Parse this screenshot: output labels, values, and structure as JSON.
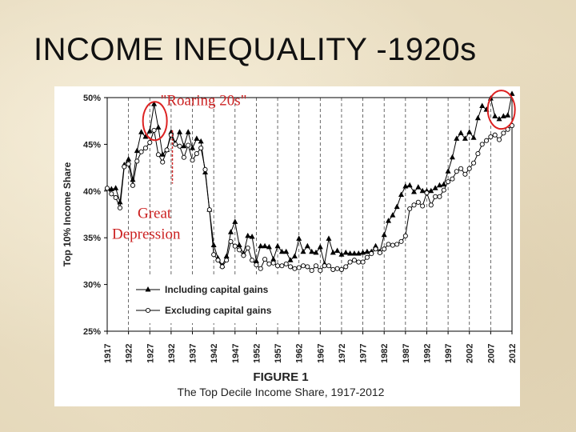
{
  "slide": {
    "title": "INCOME INEQUALITY -1920s"
  },
  "chart_data": {
    "type": "line",
    "ylabel": "Top 10% Income Share",
    "xlim": [
      1917,
      2012
    ],
    "ylim": [
      25,
      50
    ],
    "yticks": [
      25,
      30,
      35,
      40,
      45,
      50
    ],
    "ytick_labels": [
      "25%",
      "30%",
      "35%",
      "40%",
      "45%",
      "50%"
    ],
    "xticks": [
      1917,
      1922,
      1927,
      1932,
      1937,
      1942,
      1947,
      1952,
      1957,
      1962,
      1967,
      1972,
      1977,
      1982,
      1987,
      1992,
      1997,
      2002,
      2007,
      2012
    ],
    "xtick_labels": [
      "1917",
      "1922",
      "1927",
      "1932",
      "1937",
      "1942",
      "1947",
      "1952",
      "1957",
      "1962",
      "1967",
      "1972",
      "1977",
      "1982",
      "1987",
      "1992",
      "1997",
      "2002",
      "2007",
      "2012"
    ],
    "grid": "vertical-dashed",
    "legend_position": "bottom-left",
    "figure_label": "FIGURE 1",
    "figure_caption": "The Top Decile Income Share, 1917-2012",
    "series": [
      {
        "name": "Including capital gains",
        "marker": "filled-triangle",
        "x": [
          1917,
          1918,
          1919,
          1920,
          1921,
          1922,
          1923,
          1924,
          1925,
          1926,
          1927,
          1928,
          1929,
          1930,
          1931,
          1932,
          1933,
          1934,
          1935,
          1936,
          1937,
          1938,
          1939,
          1940,
          1941,
          1942,
          1943,
          1944,
          1945,
          1946,
          1947,
          1948,
          1949,
          1950,
          1951,
          1952,
          1953,
          1954,
          1955,
          1956,
          1957,
          1958,
          1959,
          1960,
          1961,
          1962,
          1963,
          1964,
          1965,
          1966,
          1967,
          1968,
          1969,
          1970,
          1971,
          1972,
          1973,
          1974,
          1975,
          1976,
          1977,
          1978,
          1979,
          1980,
          1981,
          1982,
          1983,
          1984,
          1985,
          1986,
          1987,
          1988,
          1989,
          1990,
          1991,
          1992,
          1993,
          1994,
          1995,
          1996,
          1997,
          1998,
          1999,
          2000,
          2001,
          2002,
          2003,
          2004,
          2005,
          2006,
          2007,
          2008,
          2009,
          2010,
          2011,
          2012
        ],
        "values": [
          40.3,
          40.2,
          40.3,
          38.8,
          42.8,
          43.4,
          41.2,
          44.3,
          46.3,
          45.8,
          46.4,
          49.3,
          46.8,
          43.9,
          44.4,
          46.3,
          45.1,
          46.3,
          44.8,
          46.3,
          44.6,
          45.6,
          45.3,
          42.0,
          38.0,
          34.2,
          32.8,
          32.0,
          33.0,
          35.6,
          36.7,
          34.2,
          33.3,
          35.2,
          35.1,
          32.5,
          34.1,
          34.1,
          34.0,
          32.7,
          34.1,
          33.5,
          33.5,
          32.6,
          33.0,
          34.9,
          33.5,
          34.1,
          33.5,
          33.4,
          34.0,
          32.2,
          34.9,
          33.4,
          33.6,
          33.2,
          33.4,
          33.3,
          33.3,
          33.3,
          33.4,
          33.5,
          33.5,
          34.1,
          33.5,
          35.3,
          36.8,
          37.4,
          38.3,
          39.6,
          40.5,
          40.6,
          39.9,
          40.4,
          40.0,
          40.0,
          40.0,
          40.3,
          40.6,
          40.7,
          42.1,
          43.6,
          45.6,
          46.2,
          45.6,
          46.3,
          45.7,
          47.8,
          49.1,
          48.7,
          49.9,
          48.0,
          47.7,
          48.0,
          48.1,
          50.4
        ]
      },
      {
        "name": "Excluding capital gains",
        "marker": "hollow-circle",
        "x": [
          1917,
          1918,
          1919,
          1920,
          1921,
          1922,
          1923,
          1924,
          1925,
          1926,
          1927,
          1928,
          1929,
          1930,
          1931,
          1932,
          1933,
          1934,
          1935,
          1936,
          1937,
          1938,
          1939,
          1940,
          1941,
          1942,
          1943,
          1944,
          1945,
          1946,
          1947,
          1948,
          1949,
          1950,
          1951,
          1952,
          1953,
          1954,
          1955,
          1956,
          1957,
          1958,
          1959,
          1960,
          1961,
          1962,
          1963,
          1964,
          1965,
          1966,
          1967,
          1968,
          1969,
          1970,
          1971,
          1972,
          1973,
          1974,
          1975,
          1976,
          1977,
          1978,
          1979,
          1980,
          1981,
          1982,
          1983,
          1984,
          1985,
          1986,
          1987,
          1988,
          1989,
          1990,
          1991,
          1992,
          1993,
          1994,
          1995,
          1996,
          1997,
          1998,
          1999,
          2000,
          2001,
          2002,
          2003,
          2004,
          2005,
          2006,
          2007,
          2008,
          2009,
          2010,
          2011,
          2012
        ],
        "values": [
          40.3,
          39.7,
          39.3,
          38.2,
          42.6,
          42.9,
          40.6,
          43.2,
          44.2,
          44.6,
          45.2,
          46.5,
          43.9,
          43.1,
          44.4,
          46.0,
          45.0,
          44.8,
          43.6,
          44.9,
          43.3,
          44.0,
          44.6,
          42.3,
          38.0,
          33.2,
          32.6,
          31.9,
          32.6,
          34.6,
          34.1,
          33.7,
          33.1,
          33.9,
          32.6,
          32.1,
          31.7,
          32.7,
          32.2,
          32.3,
          32.0,
          32.0,
          32.2,
          31.9,
          31.7,
          31.8,
          32.0,
          31.9,
          31.5,
          32.0,
          31.5,
          32.0,
          32.0,
          31.6,
          31.7,
          31.6,
          31.9,
          32.4,
          32.6,
          32.4,
          32.4,
          32.9,
          33.3,
          33.8,
          33.4,
          33.8,
          34.3,
          34.2,
          34.3,
          34.6,
          35.2,
          38.1,
          38.5,
          38.8,
          38.4,
          39.8,
          38.5,
          39.4,
          39.4,
          40.1,
          41.0,
          41.3,
          42.1,
          42.4,
          41.8,
          42.4,
          43.0,
          44.0,
          45.0,
          45.4,
          45.8,
          46.0,
          45.5,
          46.2,
          46.6,
          47.0
        ]
      }
    ],
    "annotations": [
      {
        "text": "\"Roaring 20s\"",
        "color": "#cc2222"
      },
      {
        "text": "Great",
        "color": "#cc2222"
      },
      {
        "text": "Depression",
        "color": "#cc2222"
      }
    ]
  }
}
